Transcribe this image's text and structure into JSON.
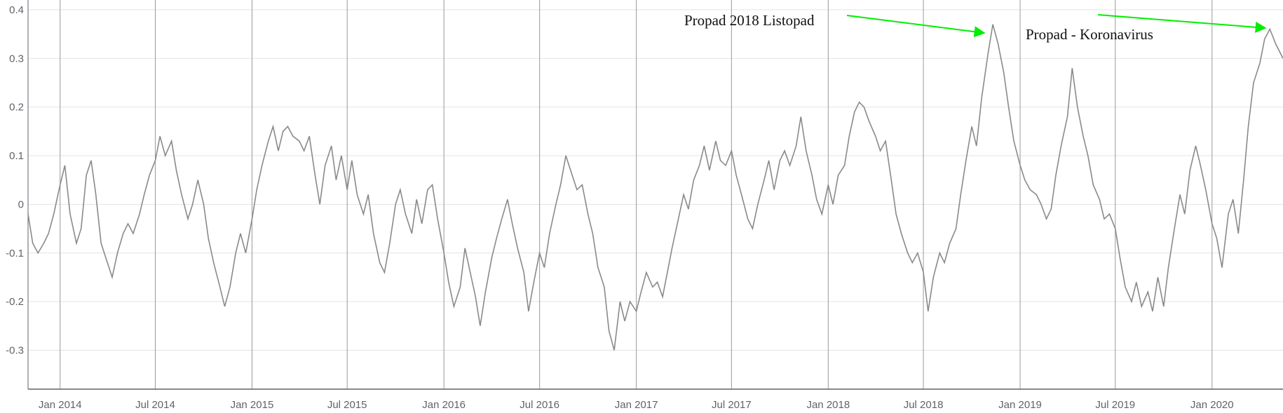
{
  "chart_data": {
    "type": "line",
    "title": "",
    "xlabel": "",
    "ylabel": "",
    "grid": true,
    "xlim": [
      "2013-11-01",
      "2020-05-15"
    ],
    "ylim": [
      -0.38,
      0.42
    ],
    "y_ticks": [
      {
        "value": 0.4,
        "label": "0.4"
      },
      {
        "value": 0.3,
        "label": "0.3"
      },
      {
        "value": 0.2,
        "label": "0.2"
      },
      {
        "value": 0.1,
        "label": "0.1"
      },
      {
        "value": 0,
        "label": "0"
      },
      {
        "value": -0.1,
        "label": "-0.1"
      },
      {
        "value": -0.2,
        "label": "-0.2"
      },
      {
        "value": -0.3,
        "label": "-0.3"
      }
    ],
    "x_ticks": [
      {
        "date": "2014-01-01",
        "label": "Jan 2014"
      },
      {
        "date": "2014-07-01",
        "label": "Jul 2014"
      },
      {
        "date": "2015-01-01",
        "label": "Jan 2015"
      },
      {
        "date": "2015-07-01",
        "label": "Jul 2015"
      },
      {
        "date": "2016-01-01",
        "label": "Jan 2016"
      },
      {
        "date": "2016-07-01",
        "label": "Jul 2016"
      },
      {
        "date": "2017-01-01",
        "label": "Jan 2017"
      },
      {
        "date": "2017-07-01",
        "label": "Jul 2017"
      },
      {
        "date": "2018-01-01",
        "label": "Jan 2018"
      },
      {
        "date": "2018-07-01",
        "label": "Jul 2018"
      },
      {
        "date": "2019-01-01",
        "label": "Jan 2019"
      },
      {
        "date": "2019-07-01",
        "label": "Jul 2019"
      },
      {
        "date": "2020-01-01",
        "label": "Jan 2020"
      }
    ],
    "series": [
      {
        "color": "#8a8a8a",
        "points": [
          [
            "2013-11-01",
            -0.02
          ],
          [
            "2013-11-10",
            -0.08
          ],
          [
            "2013-11-20",
            -0.1
          ],
          [
            "2013-12-01",
            -0.08
          ],
          [
            "2013-12-10",
            -0.06
          ],
          [
            "2013-12-20",
            -0.02
          ],
          [
            "2014-01-01",
            0.04
          ],
          [
            "2014-01-10",
            0.08
          ],
          [
            "2014-01-20",
            -0.02
          ],
          [
            "2014-02-01",
            -0.08
          ],
          [
            "2014-02-10",
            -0.05
          ],
          [
            "2014-02-20",
            0.06
          ],
          [
            "2014-03-01",
            0.09
          ],
          [
            "2014-03-10",
            0.02
          ],
          [
            "2014-03-20",
            -0.08
          ],
          [
            "2014-04-01",
            -0.12
          ],
          [
            "2014-04-10",
            -0.15
          ],
          [
            "2014-04-20",
            -0.1
          ],
          [
            "2014-05-01",
            -0.06
          ],
          [
            "2014-05-10",
            -0.04
          ],
          [
            "2014-05-20",
            -0.06
          ],
          [
            "2014-06-01",
            -0.02
          ],
          [
            "2014-06-10",
            0.02
          ],
          [
            "2014-06-20",
            0.06
          ],
          [
            "2014-07-01",
            0.09
          ],
          [
            "2014-07-10",
            0.14
          ],
          [
            "2014-07-20",
            0.1
          ],
          [
            "2014-08-01",
            0.13
          ],
          [
            "2014-08-10",
            0.07
          ],
          [
            "2014-08-20",
            0.02
          ],
          [
            "2014-09-01",
            -0.03
          ],
          [
            "2014-09-10",
            0.0
          ],
          [
            "2014-09-20",
            0.05
          ],
          [
            "2014-10-01",
            0.0
          ],
          [
            "2014-10-10",
            -0.07
          ],
          [
            "2014-10-20",
            -0.12
          ],
          [
            "2014-11-01",
            -0.17
          ],
          [
            "2014-11-10",
            -0.21
          ],
          [
            "2014-11-20",
            -0.17
          ],
          [
            "2014-12-01",
            -0.1
          ],
          [
            "2014-12-10",
            -0.06
          ],
          [
            "2014-12-20",
            -0.1
          ],
          [
            "2015-01-01",
            -0.03
          ],
          [
            "2015-01-10",
            0.03
          ],
          [
            "2015-01-20",
            0.08
          ],
          [
            "2015-02-01",
            0.13
          ],
          [
            "2015-02-10",
            0.16
          ],
          [
            "2015-02-20",
            0.11
          ],
          [
            "2015-03-01",
            0.15
          ],
          [
            "2015-03-10",
            0.16
          ],
          [
            "2015-03-20",
            0.14
          ],
          [
            "2015-04-01",
            0.13
          ],
          [
            "2015-04-10",
            0.11
          ],
          [
            "2015-04-20",
            0.14
          ],
          [
            "2015-05-01",
            0.06
          ],
          [
            "2015-05-10",
            0.0
          ],
          [
            "2015-05-20",
            0.08
          ],
          [
            "2015-06-01",
            0.12
          ],
          [
            "2015-06-10",
            0.05
          ],
          [
            "2015-06-20",
            0.1
          ],
          [
            "2015-07-01",
            0.03
          ],
          [
            "2015-07-10",
            0.09
          ],
          [
            "2015-07-20",
            0.02
          ],
          [
            "2015-08-01",
            -0.02
          ],
          [
            "2015-08-10",
            0.02
          ],
          [
            "2015-08-20",
            -0.06
          ],
          [
            "2015-09-01",
            -0.12
          ],
          [
            "2015-09-10",
            -0.14
          ],
          [
            "2015-09-20",
            -0.08
          ],
          [
            "2015-10-01",
            0.0
          ],
          [
            "2015-10-10",
            0.03
          ],
          [
            "2015-10-20",
            -0.02
          ],
          [
            "2015-11-01",
            -0.06
          ],
          [
            "2015-11-10",
            0.01
          ],
          [
            "2015-11-20",
            -0.04
          ],
          [
            "2015-12-01",
            0.03
          ],
          [
            "2015-12-10",
            0.04
          ],
          [
            "2015-12-20",
            -0.03
          ],
          [
            "2016-01-01",
            -0.1
          ],
          [
            "2016-01-10",
            -0.16
          ],
          [
            "2016-01-20",
            -0.21
          ],
          [
            "2016-02-01",
            -0.17
          ],
          [
            "2016-02-10",
            -0.09
          ],
          [
            "2016-02-20",
            -0.14
          ],
          [
            "2016-03-01",
            -0.19
          ],
          [
            "2016-03-10",
            -0.25
          ],
          [
            "2016-03-20",
            -0.18
          ],
          [
            "2016-04-01",
            -0.11
          ],
          [
            "2016-04-10",
            -0.07
          ],
          [
            "2016-04-20",
            -0.03
          ],
          [
            "2016-05-01",
            0.01
          ],
          [
            "2016-05-10",
            -0.04
          ],
          [
            "2016-05-20",
            -0.09
          ],
          [
            "2016-06-01",
            -0.14
          ],
          [
            "2016-06-10",
            -0.22
          ],
          [
            "2016-06-20",
            -0.16
          ],
          [
            "2016-07-01",
            -0.1
          ],
          [
            "2016-07-10",
            -0.13
          ],
          [
            "2016-07-20",
            -0.06
          ],
          [
            "2016-08-01",
            0.0
          ],
          [
            "2016-08-10",
            0.04
          ],
          [
            "2016-08-20",
            0.1
          ],
          [
            "2016-09-01",
            0.06
          ],
          [
            "2016-09-10",
            0.03
          ],
          [
            "2016-09-20",
            0.04
          ],
          [
            "2016-10-01",
            -0.02
          ],
          [
            "2016-10-10",
            -0.06
          ],
          [
            "2016-10-20",
            -0.13
          ],
          [
            "2016-11-01",
            -0.17
          ],
          [
            "2016-11-10",
            -0.26
          ],
          [
            "2016-11-20",
            -0.3
          ],
          [
            "2016-12-01",
            -0.2
          ],
          [
            "2016-12-10",
            -0.24
          ],
          [
            "2016-12-20",
            -0.2
          ],
          [
            "2017-01-01",
            -0.22
          ],
          [
            "2017-01-10",
            -0.18
          ],
          [
            "2017-01-20",
            -0.14
          ],
          [
            "2017-02-01",
            -0.17
          ],
          [
            "2017-02-10",
            -0.16
          ],
          [
            "2017-02-20",
            -0.19
          ],
          [
            "2017-03-01",
            -0.14
          ],
          [
            "2017-03-10",
            -0.09
          ],
          [
            "2017-03-20",
            -0.04
          ],
          [
            "2017-04-01",
            0.02
          ],
          [
            "2017-04-10",
            -0.01
          ],
          [
            "2017-04-20",
            0.05
          ],
          [
            "2017-05-01",
            0.08
          ],
          [
            "2017-05-10",
            0.12
          ],
          [
            "2017-05-20",
            0.07
          ],
          [
            "2017-06-01",
            0.13
          ],
          [
            "2017-06-10",
            0.09
          ],
          [
            "2017-06-20",
            0.08
          ],
          [
            "2017-07-01",
            0.11
          ],
          [
            "2017-07-10",
            0.06
          ],
          [
            "2017-07-20",
            0.02
          ],
          [
            "2017-08-01",
            -0.03
          ],
          [
            "2017-08-10",
            -0.05
          ],
          [
            "2017-08-20",
            0.0
          ],
          [
            "2017-09-01",
            0.05
          ],
          [
            "2017-09-10",
            0.09
          ],
          [
            "2017-09-20",
            0.03
          ],
          [
            "2017-10-01",
            0.09
          ],
          [
            "2017-10-10",
            0.11
          ],
          [
            "2017-10-20",
            0.08
          ],
          [
            "2017-11-01",
            0.12
          ],
          [
            "2017-11-10",
            0.18
          ],
          [
            "2017-11-20",
            0.11
          ],
          [
            "2017-12-01",
            0.06
          ],
          [
            "2017-12-10",
            0.01
          ],
          [
            "2017-12-20",
            -0.02
          ],
          [
            "2018-01-01",
            0.04
          ],
          [
            "2018-01-10",
            0.0
          ],
          [
            "2018-01-20",
            0.06
          ],
          [
            "2018-02-01",
            0.08
          ],
          [
            "2018-02-10",
            0.14
          ],
          [
            "2018-02-20",
            0.19
          ],
          [
            "2018-03-01",
            0.21
          ],
          [
            "2018-03-10",
            0.2
          ],
          [
            "2018-03-20",
            0.17
          ],
          [
            "2018-04-01",
            0.14
          ],
          [
            "2018-04-10",
            0.11
          ],
          [
            "2018-04-20",
            0.13
          ],
          [
            "2018-05-01",
            0.05
          ],
          [
            "2018-05-10",
            -0.02
          ],
          [
            "2018-05-20",
            -0.06
          ],
          [
            "2018-06-01",
            -0.1
          ],
          [
            "2018-06-10",
            -0.12
          ],
          [
            "2018-06-20",
            -0.1
          ],
          [
            "2018-07-01",
            -0.14
          ],
          [
            "2018-07-10",
            -0.22
          ],
          [
            "2018-07-20",
            -0.15
          ],
          [
            "2018-08-01",
            -0.1
          ],
          [
            "2018-08-10",
            -0.12
          ],
          [
            "2018-08-20",
            -0.08
          ],
          [
            "2018-09-01",
            -0.05
          ],
          [
            "2018-09-10",
            0.02
          ],
          [
            "2018-09-20",
            0.09
          ],
          [
            "2018-10-01",
            0.16
          ],
          [
            "2018-10-10",
            0.12
          ],
          [
            "2018-10-20",
            0.22
          ],
          [
            "2018-11-01",
            0.31
          ],
          [
            "2018-11-10",
            0.37
          ],
          [
            "2018-11-20",
            0.33
          ],
          [
            "2018-12-01",
            0.27
          ],
          [
            "2018-12-10",
            0.2
          ],
          [
            "2018-12-20",
            0.13
          ],
          [
            "2019-01-01",
            0.08
          ],
          [
            "2019-01-10",
            0.05
          ],
          [
            "2019-01-20",
            0.03
          ],
          [
            "2019-02-01",
            0.02
          ],
          [
            "2019-02-10",
            0.0
          ],
          [
            "2019-02-20",
            -0.03
          ],
          [
            "2019-03-01",
            -0.01
          ],
          [
            "2019-03-10",
            0.06
          ],
          [
            "2019-03-20",
            0.12
          ],
          [
            "2019-04-01",
            0.18
          ],
          [
            "2019-04-10",
            0.28
          ],
          [
            "2019-04-20",
            0.2
          ],
          [
            "2019-05-01",
            0.14
          ],
          [
            "2019-05-10",
            0.1
          ],
          [
            "2019-05-20",
            0.04
          ],
          [
            "2019-06-01",
            0.01
          ],
          [
            "2019-06-10",
            -0.03
          ],
          [
            "2019-06-20",
            -0.02
          ],
          [
            "2019-07-01",
            -0.05
          ],
          [
            "2019-07-10",
            -0.11
          ],
          [
            "2019-07-20",
            -0.17
          ],
          [
            "2019-08-01",
            -0.2
          ],
          [
            "2019-08-10",
            -0.16
          ],
          [
            "2019-08-20",
            -0.21
          ],
          [
            "2019-09-01",
            -0.18
          ],
          [
            "2019-09-10",
            -0.22
          ],
          [
            "2019-09-20",
            -0.15
          ],
          [
            "2019-10-01",
            -0.21
          ],
          [
            "2019-10-10",
            -0.13
          ],
          [
            "2019-10-20",
            -0.06
          ],
          [
            "2019-11-01",
            0.02
          ],
          [
            "2019-11-10",
            -0.02
          ],
          [
            "2019-11-20",
            0.07
          ],
          [
            "2019-12-01",
            0.12
          ],
          [
            "2019-12-10",
            0.08
          ],
          [
            "2019-12-20",
            0.03
          ],
          [
            "2020-01-01",
            -0.04
          ],
          [
            "2020-01-10",
            -0.07
          ],
          [
            "2020-01-20",
            -0.13
          ],
          [
            "2020-02-01",
            -0.02
          ],
          [
            "2020-02-10",
            0.01
          ],
          [
            "2020-02-20",
            -0.06
          ],
          [
            "2020-03-01",
            0.05
          ],
          [
            "2020-03-10",
            0.16
          ],
          [
            "2020-03-20",
            0.25
          ],
          [
            "2020-04-01",
            0.29
          ],
          [
            "2020-04-10",
            0.34
          ],
          [
            "2020-04-20",
            0.36
          ],
          [
            "2020-05-01",
            0.33
          ],
          [
            "2020-05-15",
            0.3
          ]
        ]
      }
    ],
    "annotations": [
      {
        "text": "Propad 2018 Listopad",
        "arrow_color": "#00ee00",
        "target": [
          "2018-11-10",
          0.37
        ]
      },
      {
        "text": "Propad - Koronavirus",
        "arrow_color": "#00ee00",
        "target": [
          "2020-04-20",
          0.36
        ]
      }
    ]
  }
}
